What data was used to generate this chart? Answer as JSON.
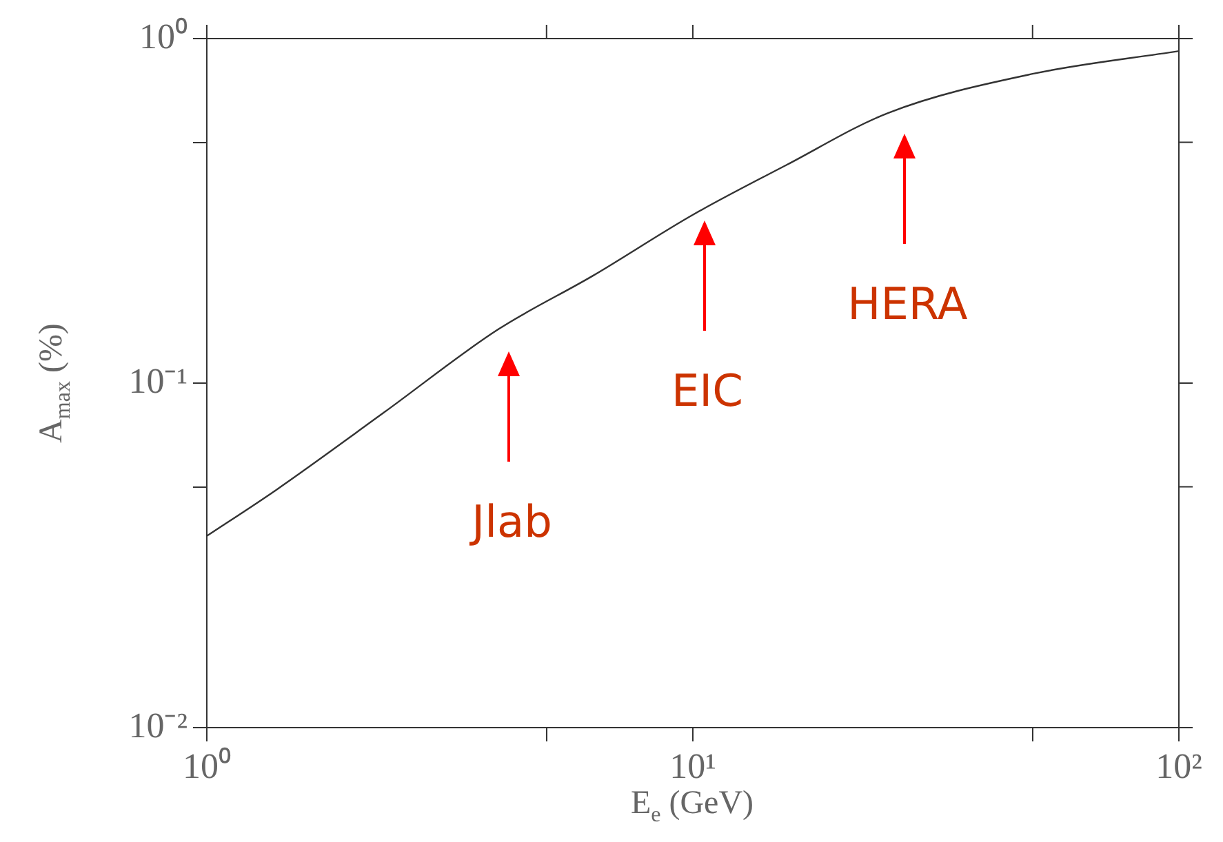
{
  "chart_data": {
    "type": "line",
    "xlabel": "E$_{e}$ (GeV)",
    "ylabel": "A$_{max}$ (%)",
    "log": "xy",
    "grid": false,
    "marker": "none",
    "line_style": "solid",
    "xlim": [
      1,
      100
    ],
    "ylim": [
      0.01,
      1
    ],
    "xticks": [
      {
        "value": 1,
        "label": "10⁰"
      },
      {
        "value": 5,
        "label": null
      },
      {
        "value": 10,
        "label": "10¹"
      },
      {
        "value": 50,
        "label": null
      },
      {
        "value": 100,
        "label": "10²"
      }
    ],
    "yticks": [
      {
        "value": 0.01,
        "label": "10⁻²"
      },
      {
        "value": 0.05,
        "label": null
      },
      {
        "value": 0.1,
        "label": "10⁻¹"
      },
      {
        "value": 0.5,
        "label": null
      },
      {
        "value": 1,
        "label": "10⁰"
      }
    ],
    "x": [
      1,
      1.39,
      2.31,
      3.97,
      6.23,
      10,
      15.6,
      25.2,
      50,
      100
    ],
    "series": [
      {
        "color": "#333333",
        "values": [
          0.036,
          0.049,
          0.082,
          0.143,
          0.205,
          0.308,
          0.43,
          0.608,
          0.79,
          0.92
        ]
      }
    ],
    "annotations": [
      "Jlab",
      "EIC",
      "HERA"
    ]
  }
}
